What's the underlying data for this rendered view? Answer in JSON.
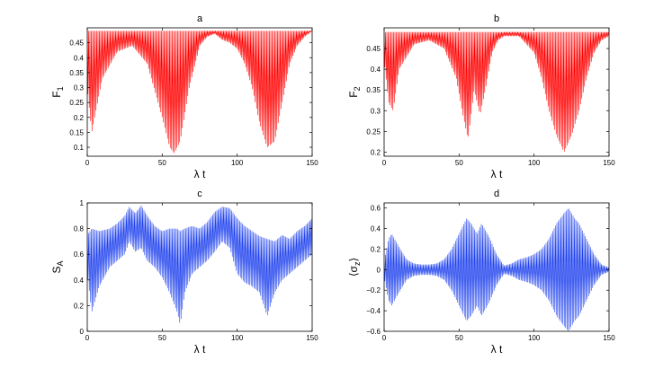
{
  "colors": {
    "red": "#ff0000",
    "blue": "#2244ee",
    "axis": "#000000"
  },
  "chart_data": [
    {
      "type": "line",
      "title": "a",
      "xlabel": "λ t",
      "ylabel": "F",
      "ylabel_sub": "1",
      "xlim": [
        0,
        150
      ],
      "ylim": [
        0.07,
        0.5
      ],
      "xticks": [
        0,
        50,
        100,
        150
      ],
      "yticks": [
        0.1,
        0.15,
        0.2,
        0.25,
        0.3,
        0.35,
        0.4,
        0.45
      ],
      "yticklabels": [
        "0.1",
        "0.15",
        "0.2",
        "0.25",
        "0.3",
        "0.35",
        "0.4",
        "0.45"
      ],
      "color": "red",
      "oscillation_period": 0.9,
      "envelope_x": [
        0,
        3,
        10,
        20,
        30,
        40,
        50,
        55,
        58,
        62,
        68,
        75,
        80,
        85,
        90,
        95,
        100,
        105,
        110,
        115,
        120,
        125,
        130,
        135,
        140,
        145,
        150
      ],
      "upper": [
        0.49,
        0.49,
        0.49,
        0.49,
        0.49,
        0.49,
        0.49,
        0.49,
        0.49,
        0.49,
        0.49,
        0.49,
        0.49,
        0.49,
        0.49,
        0.49,
        0.49,
        0.49,
        0.49,
        0.49,
        0.49,
        0.49,
        0.49,
        0.49,
        0.49,
        0.49,
        0.49
      ],
      "lower": [
        0.3,
        0.15,
        0.33,
        0.42,
        0.44,
        0.38,
        0.2,
        0.1,
        0.08,
        0.12,
        0.3,
        0.44,
        0.47,
        0.48,
        0.46,
        0.45,
        0.43,
        0.38,
        0.3,
        0.18,
        0.1,
        0.12,
        0.25,
        0.38,
        0.44,
        0.47,
        0.49
      ]
    },
    {
      "type": "line",
      "title": "b",
      "xlabel": "λ t",
      "ylabel": "F",
      "ylabel_sub": "2",
      "xlim": [
        0,
        150
      ],
      "ylim": [
        0.19,
        0.5
      ],
      "xticks": [
        0,
        50,
        100,
        150
      ],
      "yticks": [
        0.2,
        0.25,
        0.3,
        0.35,
        0.4,
        0.45
      ],
      "yticklabels": [
        "0.2",
        "0.25",
        "0.3",
        "0.35",
        "0.4",
        "0.45"
      ],
      "color": "red",
      "oscillation_period": 0.9,
      "envelope_x": [
        0,
        3,
        6,
        10,
        20,
        30,
        40,
        48,
        52,
        56,
        60,
        64,
        68,
        72,
        76,
        80,
        90,
        100,
        105,
        110,
        115,
        120,
        125,
        130,
        135,
        140,
        145,
        150
      ],
      "upper": [
        0.49,
        0.49,
        0.49,
        0.49,
        0.49,
        0.49,
        0.49,
        0.49,
        0.49,
        0.49,
        0.49,
        0.49,
        0.49,
        0.49,
        0.49,
        0.49,
        0.49,
        0.49,
        0.49,
        0.49,
        0.49,
        0.49,
        0.49,
        0.49,
        0.49,
        0.49,
        0.49,
        0.49
      ],
      "lower": [
        0.42,
        0.32,
        0.3,
        0.4,
        0.46,
        0.47,
        0.45,
        0.38,
        0.3,
        0.23,
        0.35,
        0.29,
        0.36,
        0.44,
        0.47,
        0.48,
        0.48,
        0.44,
        0.38,
        0.3,
        0.24,
        0.2,
        0.24,
        0.3,
        0.38,
        0.44,
        0.47,
        0.48
      ]
    },
    {
      "type": "line",
      "title": "c",
      "xlabel": "λ t",
      "ylabel": "S",
      "ylabel_sub": "A",
      "xlim": [
        0,
        150
      ],
      "ylim": [
        0,
        1
      ],
      "xticks": [
        0,
        50,
        100,
        150
      ],
      "yticks": [
        0,
        0.2,
        0.4,
        0.6,
        0.8,
        1
      ],
      "yticklabels": [
        "0",
        "0.2",
        "0.4",
        "0.6",
        "0.8",
        "1"
      ],
      "color": "blue",
      "oscillation_period": 0.9,
      "envelope_x": [
        0,
        3,
        8,
        15,
        20,
        25,
        28,
        32,
        36,
        40,
        45,
        50,
        55,
        60,
        62,
        65,
        70,
        75,
        80,
        85,
        90,
        95,
        100,
        105,
        110,
        115,
        120,
        125,
        130,
        135,
        140,
        145,
        150
      ],
      "upper": [
        0.75,
        0.8,
        0.78,
        0.8,
        0.84,
        0.9,
        0.97,
        0.92,
        0.98,
        0.9,
        0.82,
        0.78,
        0.8,
        0.8,
        0.78,
        0.8,
        0.82,
        0.8,
        0.85,
        0.93,
        0.97,
        0.96,
        0.88,
        0.82,
        0.78,
        0.74,
        0.72,
        0.7,
        0.75,
        0.72,
        0.78,
        0.82,
        0.88
      ],
      "lower": [
        0.45,
        0.15,
        0.35,
        0.5,
        0.55,
        0.6,
        0.7,
        0.62,
        0.65,
        0.55,
        0.5,
        0.42,
        0.3,
        0.15,
        0.05,
        0.3,
        0.45,
        0.5,
        0.55,
        0.62,
        0.7,
        0.65,
        0.45,
        0.38,
        0.35,
        0.3,
        0.12,
        0.3,
        0.4,
        0.45,
        0.5,
        0.55,
        0.6
      ]
    },
    {
      "type": "line",
      "title": "d",
      "xlabel": "λ t",
      "ylabel": "⟨σ",
      "ylabel_sub": "z",
      "ylabel_close": "⟩",
      "xlim": [
        0,
        150
      ],
      "ylim": [
        -0.6,
        0.65
      ],
      "xticks": [
        0,
        50,
        100,
        150
      ],
      "yticks": [
        -0.6,
        -0.4,
        -0.2,
        0,
        0.2,
        0.4,
        0.6
      ],
      "yticklabels": [
        "−0.6",
        "−0.4",
        "−0.2",
        "0",
        "0.2",
        "0.4",
        "0.6"
      ],
      "color": "blue",
      "oscillation_period": 0.9,
      "envelope_x": [
        0,
        3,
        5,
        10,
        15,
        20,
        25,
        30,
        35,
        40,
        45,
        50,
        55,
        58,
        62,
        65,
        70,
        75,
        80,
        85,
        90,
        95,
        100,
        105,
        110,
        115,
        120,
        123,
        127,
        130,
        135,
        140,
        145,
        150
      ],
      "upper": [
        0.08,
        0.3,
        0.35,
        0.22,
        0.1,
        0.06,
        0.05,
        0.05,
        0.06,
        0.1,
        0.2,
        0.35,
        0.5,
        0.45,
        0.35,
        0.45,
        0.32,
        0.15,
        0.04,
        0.06,
        0.1,
        0.12,
        0.15,
        0.2,
        0.3,
        0.45,
        0.55,
        0.6,
        0.5,
        0.45,
        0.3,
        0.15,
        0.05,
        0.02
      ],
      "lower": [
        -0.08,
        -0.3,
        -0.35,
        -0.22,
        -0.1,
        -0.06,
        -0.05,
        -0.05,
        -0.06,
        -0.1,
        -0.2,
        -0.35,
        -0.5,
        -0.45,
        -0.35,
        -0.45,
        -0.32,
        -0.15,
        -0.04,
        -0.06,
        -0.1,
        -0.12,
        -0.15,
        -0.2,
        -0.3,
        -0.45,
        -0.55,
        -0.6,
        -0.5,
        -0.45,
        -0.3,
        -0.15,
        -0.05,
        -0.02
      ]
    }
  ]
}
